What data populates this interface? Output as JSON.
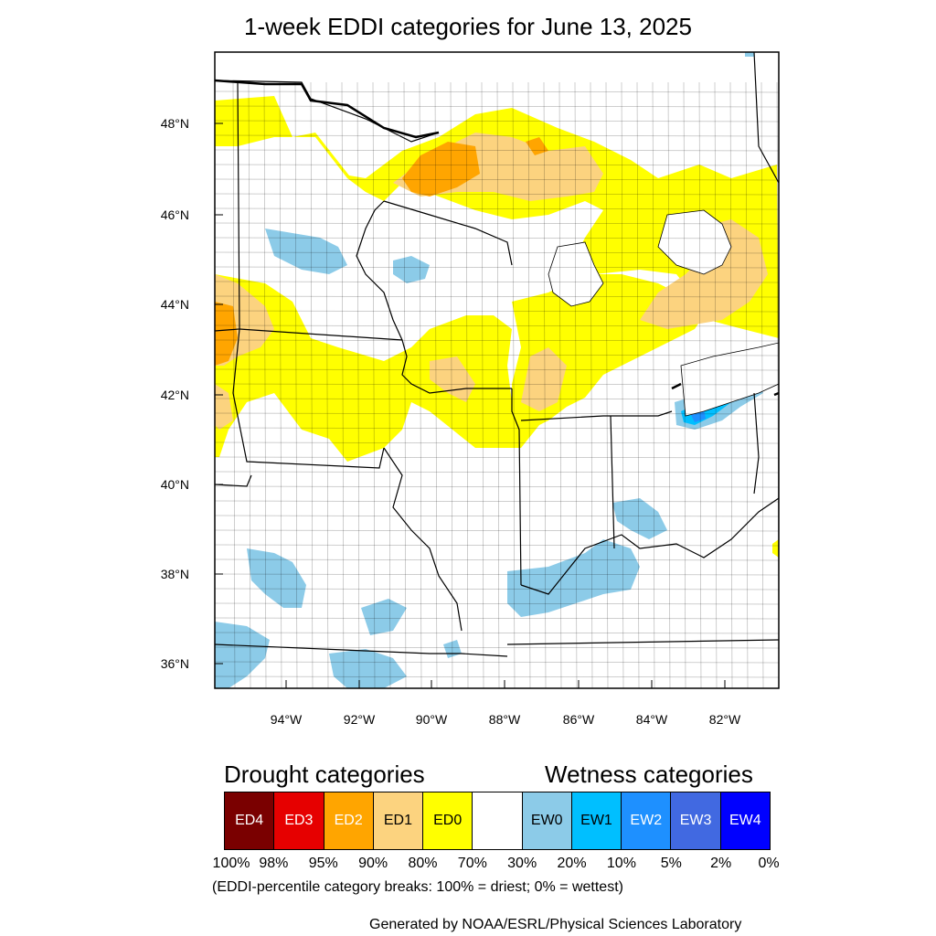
{
  "title": "1-week EDDI categories for June 13, 2025",
  "map": {
    "lat_labels": [
      "48°N",
      "46°N",
      "44°N",
      "42°N",
      "40°N",
      "38°N",
      "36°N"
    ],
    "lon_labels": [
      "94°W",
      "92°W",
      "90°W",
      "88°W",
      "86°W",
      "84°W",
      "82°W"
    ],
    "colors": {
      "ED4": "#7a0000",
      "ED3": "#e60000",
      "ED2": "#ffa500",
      "ED1": "#fcd37f",
      "ED0": "#ffff00",
      "NONE": "#ffffff",
      "EW0": "#8ccbe8",
      "EW1": "#00bfff",
      "EW2": "#1e90ff",
      "EW3": "#4169e1",
      "EW4": "#0000ff"
    }
  },
  "legend": {
    "drought_title": "Drought categories",
    "wetness_title": "Wetness categories",
    "categories": [
      {
        "label": "ED4",
        "color": "#7a0000",
        "text_color": "#ffffff"
      },
      {
        "label": "ED3",
        "color": "#e60000",
        "text_color": "#ffffff"
      },
      {
        "label": "ED2",
        "color": "#ffa500",
        "text_color": "#ffffff"
      },
      {
        "label": "ED1",
        "color": "#fcd37f",
        "text_color": "#000000"
      },
      {
        "label": "ED0",
        "color": "#ffff00",
        "text_color": "#000000"
      },
      {
        "label": "",
        "color": "#ffffff",
        "text_color": "#000000"
      },
      {
        "label": "EW0",
        "color": "#8ccbe8",
        "text_color": "#000000"
      },
      {
        "label": "EW1",
        "color": "#00bfff",
        "text_color": "#000000"
      },
      {
        "label": "EW2",
        "color": "#1e90ff",
        "text_color": "#ffffff"
      },
      {
        "label": "EW3",
        "color": "#4169e1",
        "text_color": "#ffffff"
      },
      {
        "label": "EW4",
        "color": "#0000ff",
        "text_color": "#ffffff"
      }
    ],
    "breaks": [
      "100%",
      "98%",
      "95%",
      "90%",
      "80%",
      "70%",
      "30%",
      "20%",
      "10%",
      "5%",
      "2%",
      "0%"
    ],
    "note": "(EDDI-percentile category breaks: 100% = driest; 0% = wettest)"
  },
  "credit": "Generated by NOAA/ESRL/Physical Sciences Laboratory"
}
